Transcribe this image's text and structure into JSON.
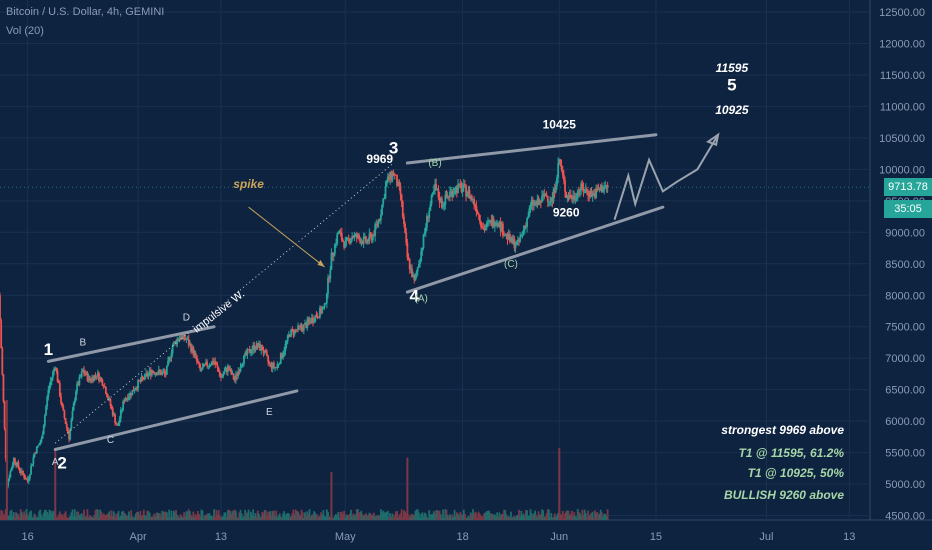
{
  "header": {
    "title": "Bitcoin / U.S. Dollar, 4h, GEMINI",
    "volume": "Vol (20)"
  },
  "price_tag": "9713.78",
  "timer_tag": "35:05",
  "notes": [
    {
      "text": "strongest 9969 above",
      "color": "#ffffff"
    },
    {
      "text": "T1 @ 11595, 61.2%",
      "color": "#a5d6a7"
    },
    {
      "text": "T1 @ 10925, 50%",
      "color": "#a5d6a7"
    },
    {
      "text": "BULLISH 9260 above",
      "color": "#a5d6a7"
    }
  ],
  "chart_data": {
    "type": "candlestick",
    "title": "Bitcoin / U.S. Dollar, 4h, GEMINI",
    "y_ticks": [
      4500,
      5000,
      5500,
      6000,
      6500,
      7000,
      7500,
      8000,
      8500,
      9000,
      9500,
      10000,
      10500,
      11000,
      11500,
      12000,
      12500
    ],
    "y_tick_labels": [
      "4500.00",
      "5000.00",
      "5500.00",
      "6000.00",
      "6500.00",
      "7000.00",
      "7500.00",
      "8000.00",
      "8500.00",
      "9000.00",
      "9500.00",
      "10000.00",
      "10500.00",
      "11000.00",
      "11500.00",
      "12000.00",
      "12500.00"
    ],
    "ylim": [
      4430,
      12690
    ],
    "x_ticks": [
      "16",
      "Apr",
      "13",
      "May",
      "18",
      "Jun",
      "15",
      "Jul",
      "13"
    ],
    "last_price": 9713.78,
    "price_path": [
      [
        "2020-03-12",
        8000
      ],
      [
        "2020-03-12",
        7600
      ],
      [
        "2020-03-13",
        5000
      ],
      [
        "2020-03-14",
        5400
      ],
      [
        "2020-03-15",
        5200
      ],
      [
        "2020-03-16",
        5050
      ],
      [
        "2020-03-17",
        5500
      ],
      [
        "2020-03-18",
        5700
      ],
      [
        "2020-03-19",
        6500
      ],
      [
        "2020-03-20",
        6900
      ],
      [
        "2020-03-21",
        6200
      ],
      [
        "2020-03-22",
        5750
      ],
      [
        "2020-03-23",
        6500
      ],
      [
        "2020-03-24",
        6800
      ],
      [
        "2020-03-25",
        6650
      ],
      [
        "2020-03-26",
        6750
      ],
      [
        "2020-03-27",
        6600
      ],
      [
        "2020-03-28",
        6250
      ],
      [
        "2020-03-29",
        5900
      ],
      [
        "2020-03-30",
        6350
      ],
      [
        "2020-03-31",
        6450
      ],
      [
        "2020-04-01",
        6600
      ],
      [
        "2020-04-03",
        6800
      ],
      [
        "2020-04-05",
        6750
      ],
      [
        "2020-04-06",
        7200
      ],
      [
        "2020-04-07",
        7350
      ],
      [
        "2020-04-08",
        7300
      ],
      [
        "2020-04-09",
        7100
      ],
      [
        "2020-04-10",
        6800
      ],
      [
        "2020-04-11",
        6900
      ],
      [
        "2020-04-12",
        6950
      ],
      [
        "2020-04-13",
        6700
      ],
      [
        "2020-04-14",
        6850
      ],
      [
        "2020-04-15",
        6650
      ],
      [
        "2020-04-16",
        6950
      ],
      [
        "2020-04-17",
        7100
      ],
      [
        "2020-04-18",
        7200
      ],
      [
        "2020-04-19",
        7150
      ],
      [
        "2020-04-20",
        6900
      ],
      [
        "2020-04-21",
        6850
      ],
      [
        "2020-04-22",
        7100
      ],
      [
        "2020-04-23",
        7400
      ],
      [
        "2020-04-25",
        7500
      ],
      [
        "2020-04-26",
        7600
      ],
      [
        "2020-04-27",
        7700
      ],
      [
        "2020-04-28",
        7800
      ],
      [
        "2020-04-29",
        8600
      ],
      [
        "2020-04-30",
        9000
      ],
      [
        "2020-05-01",
        8800
      ],
      [
        "2020-05-02",
        8950
      ],
      [
        "2020-05-03",
        8900
      ],
      [
        "2020-05-04",
        8850
      ],
      [
        "2020-05-05",
        8950
      ],
      [
        "2020-05-06",
        9250
      ],
      [
        "2020-05-07",
        9800
      ],
      [
        "2020-05-08",
        9950
      ],
      [
        "2020-05-09",
        9600
      ],
      [
        "2020-05-10",
        8600
      ],
      [
        "2020-05-11",
        8200
      ],
      [
        "2020-05-12",
        8700
      ],
      [
        "2020-05-13",
        9300
      ],
      [
        "2020-05-14",
        9700
      ],
      [
        "2020-05-15",
        9450
      ],
      [
        "2020-05-16",
        9600
      ],
      [
        "2020-05-17",
        9700
      ],
      [
        "2020-05-18",
        9700
      ],
      [
        "2020-05-19",
        9600
      ],
      [
        "2020-05-20",
        9400
      ],
      [
        "2020-05-21",
        9050
      ],
      [
        "2020-05-22",
        9150
      ],
      [
        "2020-05-23",
        9200
      ],
      [
        "2020-05-24",
        9000
      ],
      [
        "2020-05-25",
        8850
      ],
      [
        "2020-05-26",
        8800
      ],
      [
        "2020-05-27",
        9100
      ],
      [
        "2020-05-28",
        9450
      ],
      [
        "2020-05-29",
        9450
      ],
      [
        "2020-05-30",
        9600
      ],
      [
        "2020-05-31",
        9500
      ],
      [
        "2020-06-01",
        10150
      ],
      [
        "2020-06-02",
        9600
      ],
      [
        "2020-06-03",
        9550
      ],
      [
        "2020-06-04",
        9700
      ],
      [
        "2020-06-05",
        9650
      ],
      [
        "2020-06-06",
        9600
      ],
      [
        "2020-06-07",
        9700
      ],
      [
        "2020-06-08",
        9713.78
      ]
    ],
    "volume_spikes": [
      [
        "2020-03-13",
        5
      ],
      [
        "2020-03-20",
        3
      ],
      [
        "2020-04-29",
        2
      ],
      [
        "2020-05-10",
        2.6
      ],
      [
        "2020-06-01",
        3
      ]
    ],
    "annotations": {
      "wave_labels": [
        {
          "text": "1",
          "date": "2020-03-19",
          "price": 7050
        },
        {
          "text": "2",
          "date": "2020-03-21",
          "price": 5250
        },
        {
          "text": "3",
          "date": "2020-05-08",
          "price": 10250
        },
        {
          "text": "4",
          "date": "2020-05-11",
          "price": 7900
        },
        {
          "text": "5",
          "date": "2020-06-26",
          "price": 11250
        }
      ],
      "sub_labels": [
        {
          "text": "A",
          "date": "2020-03-20",
          "price": 5300
        },
        {
          "text": "B",
          "date": "2020-03-24",
          "price": 7200
        },
        {
          "text": "C",
          "date": "2020-03-28",
          "price": 5650
        },
        {
          "text": "D",
          "date": "2020-04-08",
          "price": 7600
        },
        {
          "text": "E",
          "date": "2020-04-20",
          "price": 6100
        },
        {
          "text": "(A)",
          "date": "2020-05-12",
          "price": 7900
        },
        {
          "text": "(B)",
          "date": "2020-05-14",
          "price": 10050
        },
        {
          "text": "(C)",
          "date": "2020-05-25",
          "price": 8450
        }
      ],
      "price_labels": [
        {
          "text": "9969",
          "date": "2020-05-06",
          "price": 10100
        },
        {
          "text": "10425",
          "date": "2020-06-01",
          "price": 10650
        },
        {
          "text": "9260",
          "date": "2020-06-02",
          "price": 9250
        },
        {
          "text": "11595",
          "date": "2020-06-26",
          "price": 11550
        },
        {
          "text": "10925",
          "date": "2020-06-26",
          "price": 10880
        }
      ],
      "text_labels": [
        {
          "text": "spike",
          "date": "2020-04-17",
          "price": 9700
        },
        {
          "text": "impulsive W.",
          "date": "2020-04-13",
          "price": 7700
        }
      ],
      "trendlines": [
        {
          "name": "upper-channel",
          "from": [
            "2020-03-19",
            6950
          ],
          "to": [
            "2020-04-12",
            7500
          ]
        },
        {
          "name": "lower-channel",
          "from": [
            "2020-03-20",
            5550
          ],
          "to": [
            "2020-04-24",
            6480
          ]
        },
        {
          "name": "triangle-upper",
          "from": [
            "2020-05-10",
            10100
          ],
          "to": [
            "2020-06-15",
            10550
          ]
        },
        {
          "name": "triangle-lower",
          "from": [
            "2020-05-10",
            8050
          ],
          "to": [
            "2020-06-16",
            9400
          ]
        }
      ],
      "projection": [
        [
          "2020-06-09",
          9200
        ],
        [
          "2020-06-11",
          9900
        ],
        [
          "2020-06-12",
          9450
        ],
        [
          "2020-06-14",
          10150
        ],
        [
          "2020-06-16",
          9650
        ],
        [
          "2020-06-18",
          9800
        ],
        [
          "2020-06-21",
          10000
        ],
        [
          "2020-06-24",
          10550
        ]
      ],
      "impulse_line": {
        "from": [
          "2020-03-20",
          5650
        ],
        "to": [
          "2020-05-08",
          10100
        ]
      },
      "spike_arrow": {
        "from": [
          "2020-04-17",
          9400
        ],
        "to": [
          "2020-04-28",
          8450
        ]
      }
    }
  }
}
